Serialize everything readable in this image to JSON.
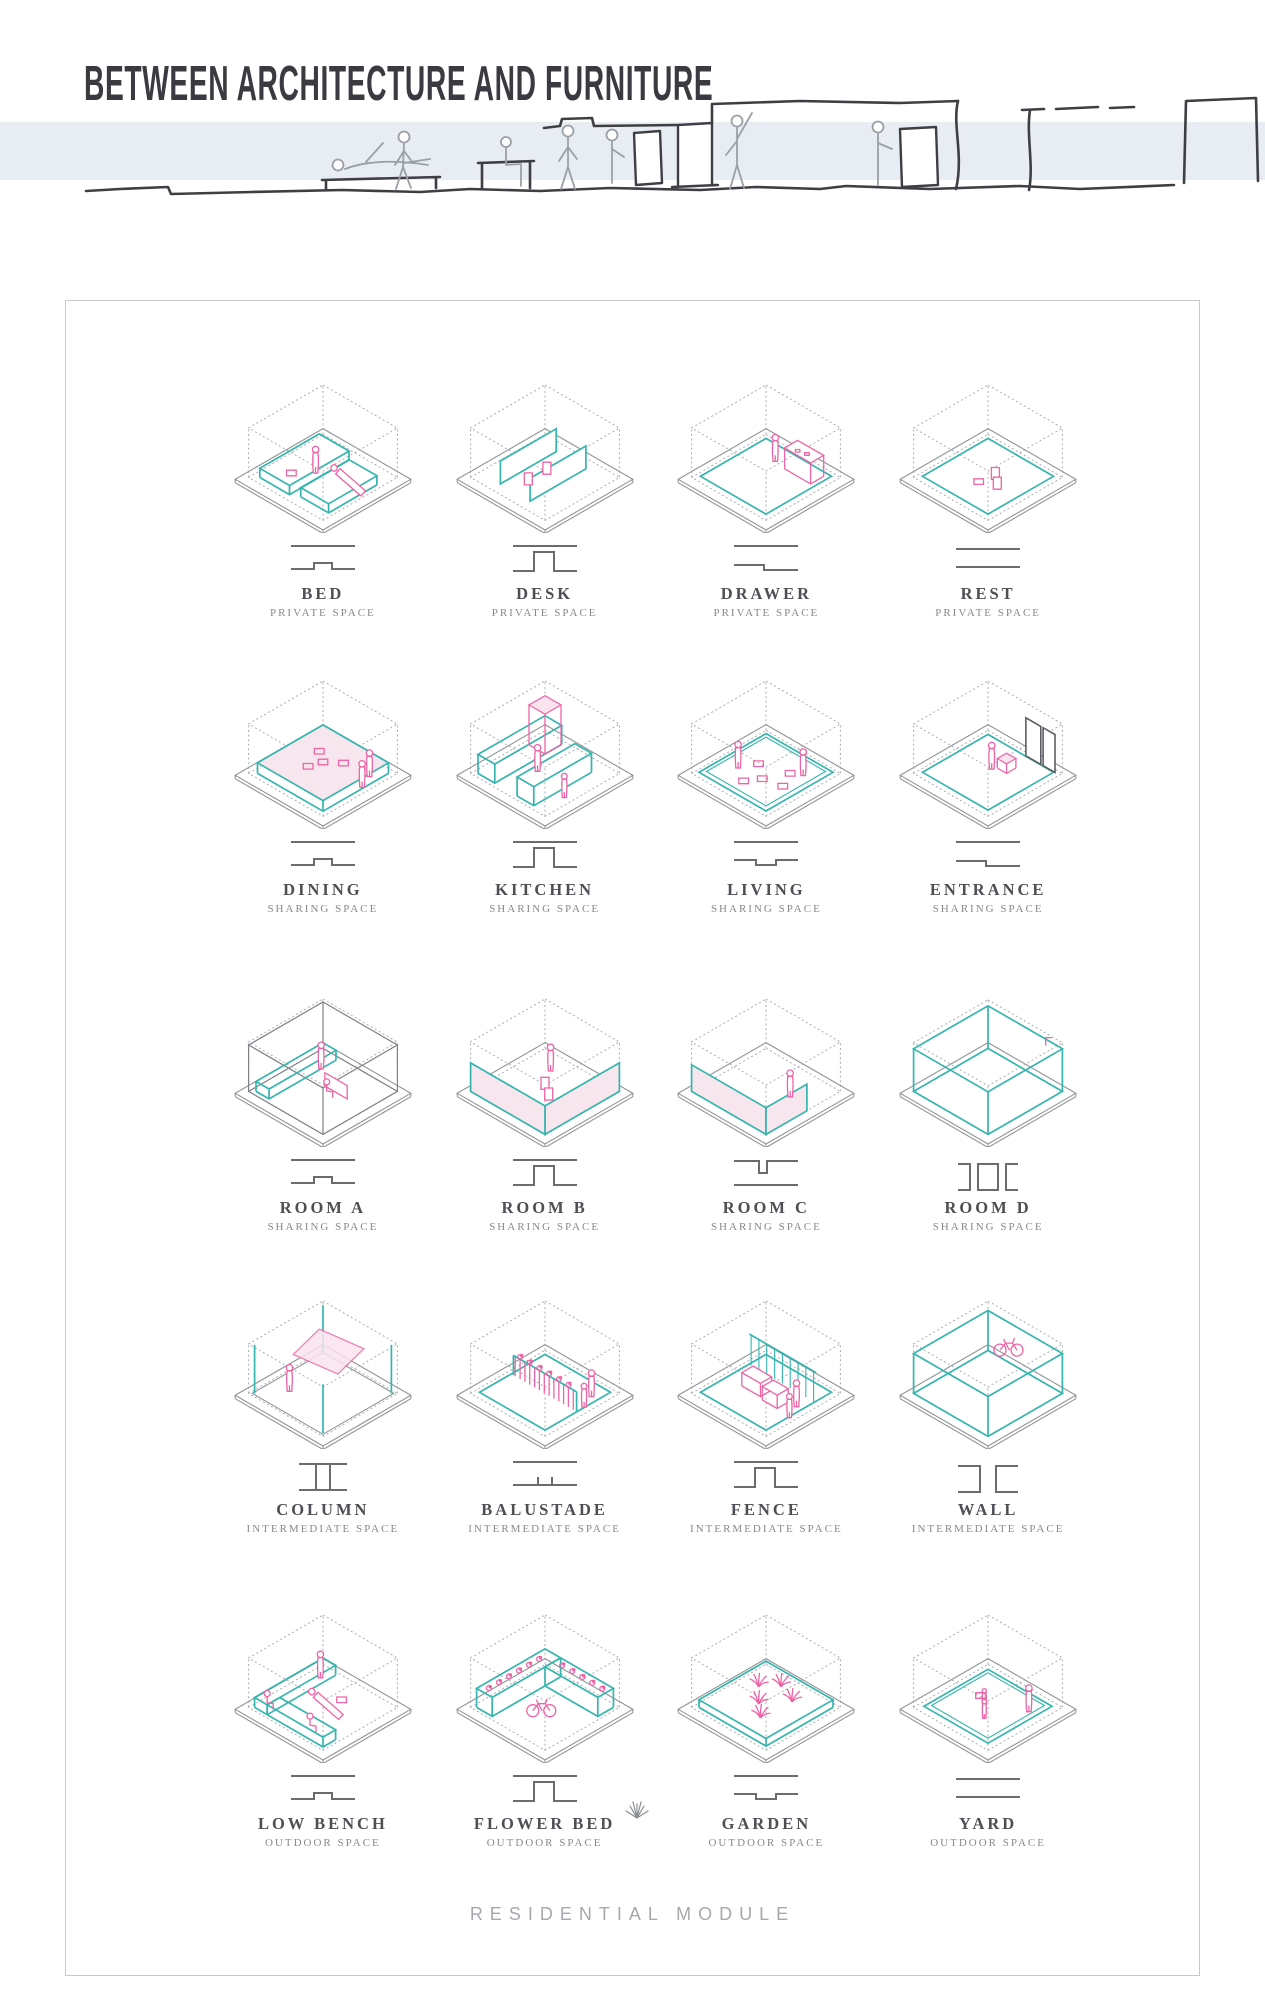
{
  "title": "BETWEEN ARCHITECTURE AND FURNITURE",
  "footer": "RESIDENTIAL MODULE",
  "colors": {
    "accent_teal": "#35b5ae",
    "accent_pink": "#ee63a5",
    "pink_light": "#fbe3ee",
    "band_blue": "#e8edf3",
    "sketch_dark": "#3e3e44",
    "dotted_gray": "#a8adb0",
    "label_dark": "#4e4f54",
    "label_muted": "#87898d",
    "footer_gray": "#a5a9ad"
  },
  "modules": [
    {
      "id": "bed",
      "name": "BED",
      "space": "PRIVATE SPACE",
      "glyph": "plain|bump-low"
    },
    {
      "id": "desk",
      "name": "DESK",
      "space": "PRIVATE SPACE",
      "glyph": "plain|bump-tall"
    },
    {
      "id": "drawer",
      "name": "DRAWER",
      "space": "PRIVATE SPACE",
      "glyph": "plain|step-down"
    },
    {
      "id": "rest",
      "name": "REST",
      "space": "PRIVATE SPACE",
      "glyph": "plain|plain"
    },
    {
      "id": "dining",
      "name": "DINING",
      "space": "SHARING SPACE",
      "glyph": "plain|bump-low"
    },
    {
      "id": "kitchen",
      "name": "KITCHEN",
      "space": "SHARING SPACE",
      "glyph": "plain|bump-tall"
    },
    {
      "id": "living",
      "name": "LIVING",
      "space": "SHARING SPACE",
      "glyph": "plain|notch-down"
    },
    {
      "id": "entrance",
      "name": "ENTRANCE",
      "space": "SHARING SPACE",
      "glyph": "plain|step-down"
    },
    {
      "id": "rooma",
      "name": "ROOM A",
      "space": "SHARING SPACE",
      "glyph": "plain|bump-low"
    },
    {
      "id": "roomb",
      "name": "ROOM B",
      "space": "SHARING SPACE",
      "glyph": "plain|bump-tall"
    },
    {
      "id": "roomc",
      "name": "ROOM C",
      "space": "SHARING SPACE",
      "glyph": "notch-top|plain"
    },
    {
      "id": "roomd",
      "name": "ROOM D",
      "space": "SHARING SPACE",
      "glyph": "roomd"
    },
    {
      "id": "column",
      "name": "COLUMN",
      "space": "INTERMEDIATE SPACE",
      "glyph": "column"
    },
    {
      "id": "balustade",
      "name": "BALUSTADE",
      "space": "INTERMEDIATE SPACE",
      "glyph": "plain|posts"
    },
    {
      "id": "fence",
      "name": "FENCE",
      "space": "INTERMEDIATE SPACE",
      "glyph": "plain|bump-tall"
    },
    {
      "id": "wall",
      "name": "WALL",
      "space": "INTERMEDIATE SPACE",
      "glyph": "wall"
    },
    {
      "id": "lowbench",
      "name": "LOW BENCH",
      "space": "OUTDOOR SPACE",
      "glyph": "plain|bump-low"
    },
    {
      "id": "flowerbed",
      "name": "FLOWER BED",
      "space": "OUTDOOR SPACE",
      "glyph": "plain|bump-tall"
    },
    {
      "id": "garden",
      "name": "GARDEN",
      "space": "OUTDOOR SPACE",
      "glyph": "plain|notch-down"
    },
    {
      "id": "yard",
      "name": "YARD",
      "space": "OUTDOOR SPACE",
      "glyph": "plain|plain"
    }
  ]
}
